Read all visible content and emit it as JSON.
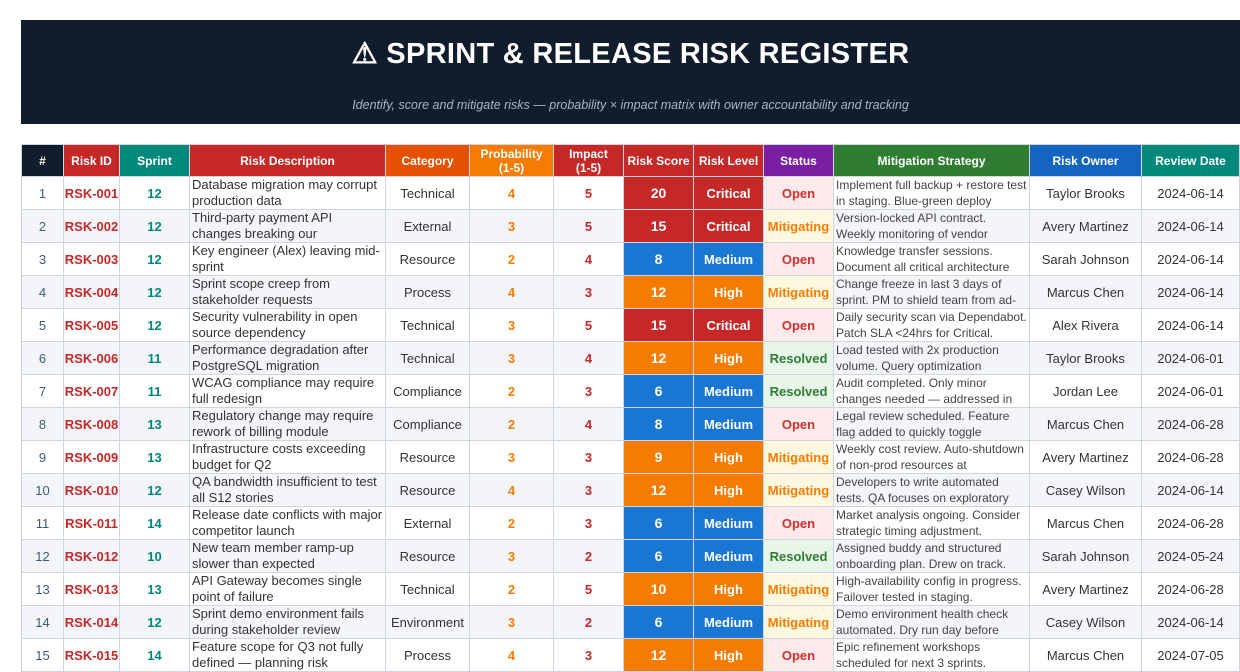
{
  "header": {
    "title": "⚠  SPRINT & RELEASE RISK REGISTER",
    "subtitle": "Identify, score and mitigate risks — probability × impact matrix with owner accountability and tracking"
  },
  "table": {
    "columns": [
      {
        "label": "#",
        "color": "#111c2c"
      },
      {
        "label": "Risk ID",
        "color": "#c62828"
      },
      {
        "label": "Sprint",
        "color": "#00897b"
      },
      {
        "label": "Risk Description",
        "color": "#c62828"
      },
      {
        "label": "Category",
        "color": "#e65100"
      },
      {
        "label": "Probability\n(1-5)",
        "color": "#f57c00"
      },
      {
        "label": "Impact\n(1-5)",
        "color": "#c62828"
      },
      {
        "label": "Risk Score",
        "color": "#c62828"
      },
      {
        "label": "Risk Level",
        "color": "#c62828"
      },
      {
        "label": "Status",
        "color": "#7b1fa2"
      },
      {
        "label": "Mitigation Strategy",
        "color": "#2e7d32"
      },
      {
        "label": "Risk Owner",
        "color": "#1565c0"
      },
      {
        "label": "Review Date",
        "color": "#00897b"
      }
    ],
    "level_colors": {
      "Critical": "#c62828",
      "High": "#f57c00",
      "Medium": "#1976d2"
    },
    "status_styles": {
      "Open": {
        "color": "#d32f2f",
        "background": "#fdeaea"
      },
      "Mitigating": {
        "color": "#f57c00",
        "background": "#fff8e1"
      },
      "Resolved": {
        "color": "#2e7d32",
        "background": "#e8f5e9"
      }
    },
    "rows": [
      [
        1,
        "RSK-001",
        12,
        "Database migration may corrupt production data",
        "Technical",
        4,
        5,
        20,
        "Critical",
        "Open",
        "Implement full backup + restore test in staging. Blue-green deploy",
        "Taylor Brooks",
        "2024-06-14"
      ],
      [
        2,
        "RSK-002",
        12,
        "Third-party payment API changes breaking our",
        "External",
        3,
        5,
        15,
        "Critical",
        "Mitigating",
        "Version-locked API contract. Weekly monitoring of vendor",
        "Avery Martinez",
        "2024-06-14"
      ],
      [
        3,
        "RSK-003",
        12,
        "Key engineer (Alex) leaving mid-sprint",
        "Resource",
        2,
        4,
        8,
        "Medium",
        "Open",
        "Knowledge transfer sessions. Document all critical architecture",
        "Sarah Johnson",
        "2024-06-14"
      ],
      [
        4,
        "RSK-004",
        12,
        "Sprint scope creep from stakeholder requests",
        "Process",
        4,
        3,
        12,
        "High",
        "Mitigating",
        "Change freeze in last 3 days of sprint. PM to shield team from ad-",
        "Marcus Chen",
        "2024-06-14"
      ],
      [
        5,
        "RSK-005",
        12,
        "Security vulnerability in open source dependency",
        "Technical",
        3,
        5,
        15,
        "Critical",
        "Open",
        "Daily security scan via Dependabot. Patch SLA <24hrs for Critical.",
        "Alex Rivera",
        "2024-06-14"
      ],
      [
        6,
        "RSK-006",
        11,
        "Performance degradation after PostgreSQL migration",
        "Technical",
        3,
        4,
        12,
        "High",
        "Resolved",
        "Load tested with 2x production volume. Query optimization",
        "Taylor Brooks",
        "2024-06-01"
      ],
      [
        7,
        "RSK-007",
        11,
        "WCAG compliance may require full redesign",
        "Compliance",
        2,
        3,
        6,
        "Medium",
        "Resolved",
        "Audit completed. Only minor changes needed — addressed in",
        "Jordan Lee",
        "2024-06-01"
      ],
      [
        8,
        "RSK-008",
        13,
        "Regulatory change may require rework of billing module",
        "Compliance",
        2,
        4,
        8,
        "Medium",
        "Open",
        "Legal review scheduled. Feature flag added to quickly toggle",
        "Marcus Chen",
        "2024-06-28"
      ],
      [
        9,
        "RSK-009",
        13,
        "Infrastructure costs exceeding budget for Q2",
        "Resource",
        3,
        3,
        9,
        "High",
        "Mitigating",
        "Weekly cost review. Auto-shutdown of non-prod resources at",
        "Avery Martinez",
        "2024-06-28"
      ],
      [
        10,
        "RSK-010",
        12,
        "QA bandwidth insufficient to test all S12 stories",
        "Resource",
        4,
        3,
        12,
        "High",
        "Mitigating",
        "Developers to write automated tests. QA focuses on exploratory",
        "Casey Wilson",
        "2024-06-14"
      ],
      [
        11,
        "RSK-011",
        14,
        "Release date conflicts with major competitor launch",
        "External",
        2,
        3,
        6,
        "Medium",
        "Open",
        "Market analysis ongoing. Consider strategic timing adjustment.",
        "Marcus Chen",
        "2024-06-28"
      ],
      [
        12,
        "RSK-012",
        10,
        "New team member ramp-up slower than expected",
        "Resource",
        3,
        2,
        6,
        "Medium",
        "Resolved",
        "Assigned buddy and structured onboarding plan. Drew on track.",
        "Sarah Johnson",
        "2024-05-24"
      ],
      [
        13,
        "RSK-013",
        13,
        "API Gateway becomes single point of failure",
        "Technical",
        2,
        5,
        10,
        "High",
        "Mitigating",
        "High-availability config in progress. Failover tested in staging.",
        "Avery Martinez",
        "2024-06-28"
      ],
      [
        14,
        "RSK-014",
        12,
        "Sprint demo environment fails during stakeholder review",
        "Environment",
        3,
        2,
        6,
        "Medium",
        "Mitigating",
        "Demo environment health check automated. Dry run day before",
        "Casey Wilson",
        "2024-06-14"
      ],
      [
        15,
        "RSK-015",
        14,
        "Feature scope for Q3 not fully defined — planning risk",
        "Process",
        4,
        3,
        12,
        "High",
        "Open",
        "Epic refinement workshops scheduled for next 3 sprints.",
        "Marcus Chen",
        "2024-07-05"
      ]
    ]
  }
}
